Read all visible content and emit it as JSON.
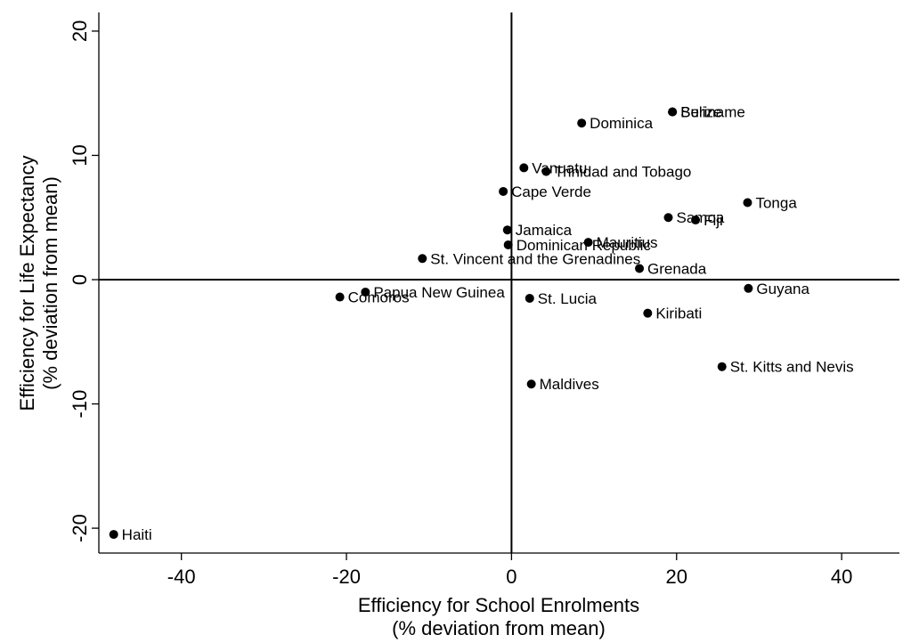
{
  "chart_data": {
    "type": "scatter",
    "xlabel": [
      "Efficiency for School Enrolments",
      "(% deviation from mean)"
    ],
    "ylabel": [
      "Efficiency for Life Expectancy",
      "(% deviation from mean)"
    ],
    "xlim": [
      -50,
      47
    ],
    "ylim": [
      -22,
      21.5
    ],
    "xticks": [
      -40,
      -20,
      0,
      20,
      40
    ],
    "yticks": [
      -20,
      -10,
      0,
      10,
      20
    ],
    "reference_lines": {
      "x": 0,
      "y": 0
    },
    "grid": false,
    "points": [
      {
        "label": "Belize",
        "x": 19.5,
        "y": 13.5
      },
      {
        "label": "Suriname",
        "x": 19.5,
        "y": 13.5
      },
      {
        "label": "Dominica",
        "x": 8.5,
        "y": 12.6
      },
      {
        "label": "Vanuatu",
        "x": 1.5,
        "y": 9.0
      },
      {
        "label": "Trinidad and Tobago",
        "x": 4.2,
        "y": 8.7
      },
      {
        "label": "Cape Verde",
        "x": -1.0,
        "y": 7.1
      },
      {
        "label": "Tonga",
        "x": 28.6,
        "y": 6.2
      },
      {
        "label": "Samoa",
        "x": 19.0,
        "y": 5.0
      },
      {
        "label": "Fiji",
        "x": 22.3,
        "y": 4.8
      },
      {
        "label": "Jamaica",
        "x": -0.5,
        "y": 4.0
      },
      {
        "label": "Mauritius",
        "x": 9.3,
        "y": 3.0
      },
      {
        "label": "Dominican Republic",
        "x": -0.4,
        "y": 2.8
      },
      {
        "label": "St. Vincent and the Grenadines",
        "x": -10.8,
        "y": 1.7
      },
      {
        "label": "Grenada",
        "x": 15.5,
        "y": 0.9
      },
      {
        "label": "Guyana",
        "x": 28.7,
        "y": -0.7
      },
      {
        "label": "Papua New Guinea",
        "x": -17.7,
        "y": -1.0
      },
      {
        "label": "Comoros",
        "x": -20.8,
        "y": -1.4
      },
      {
        "label": "St. Lucia",
        "x": 2.2,
        "y": -1.5
      },
      {
        "label": "Kiribati",
        "x": 16.5,
        "y": -2.7
      },
      {
        "label": "St. Kitts and Nevis",
        "x": 25.5,
        "y": -7.0
      },
      {
        "label": "Maldives",
        "x": 2.4,
        "y": -8.4
      },
      {
        "label": "Haiti",
        "x": -48.2,
        "y": -20.5
      }
    ]
  }
}
